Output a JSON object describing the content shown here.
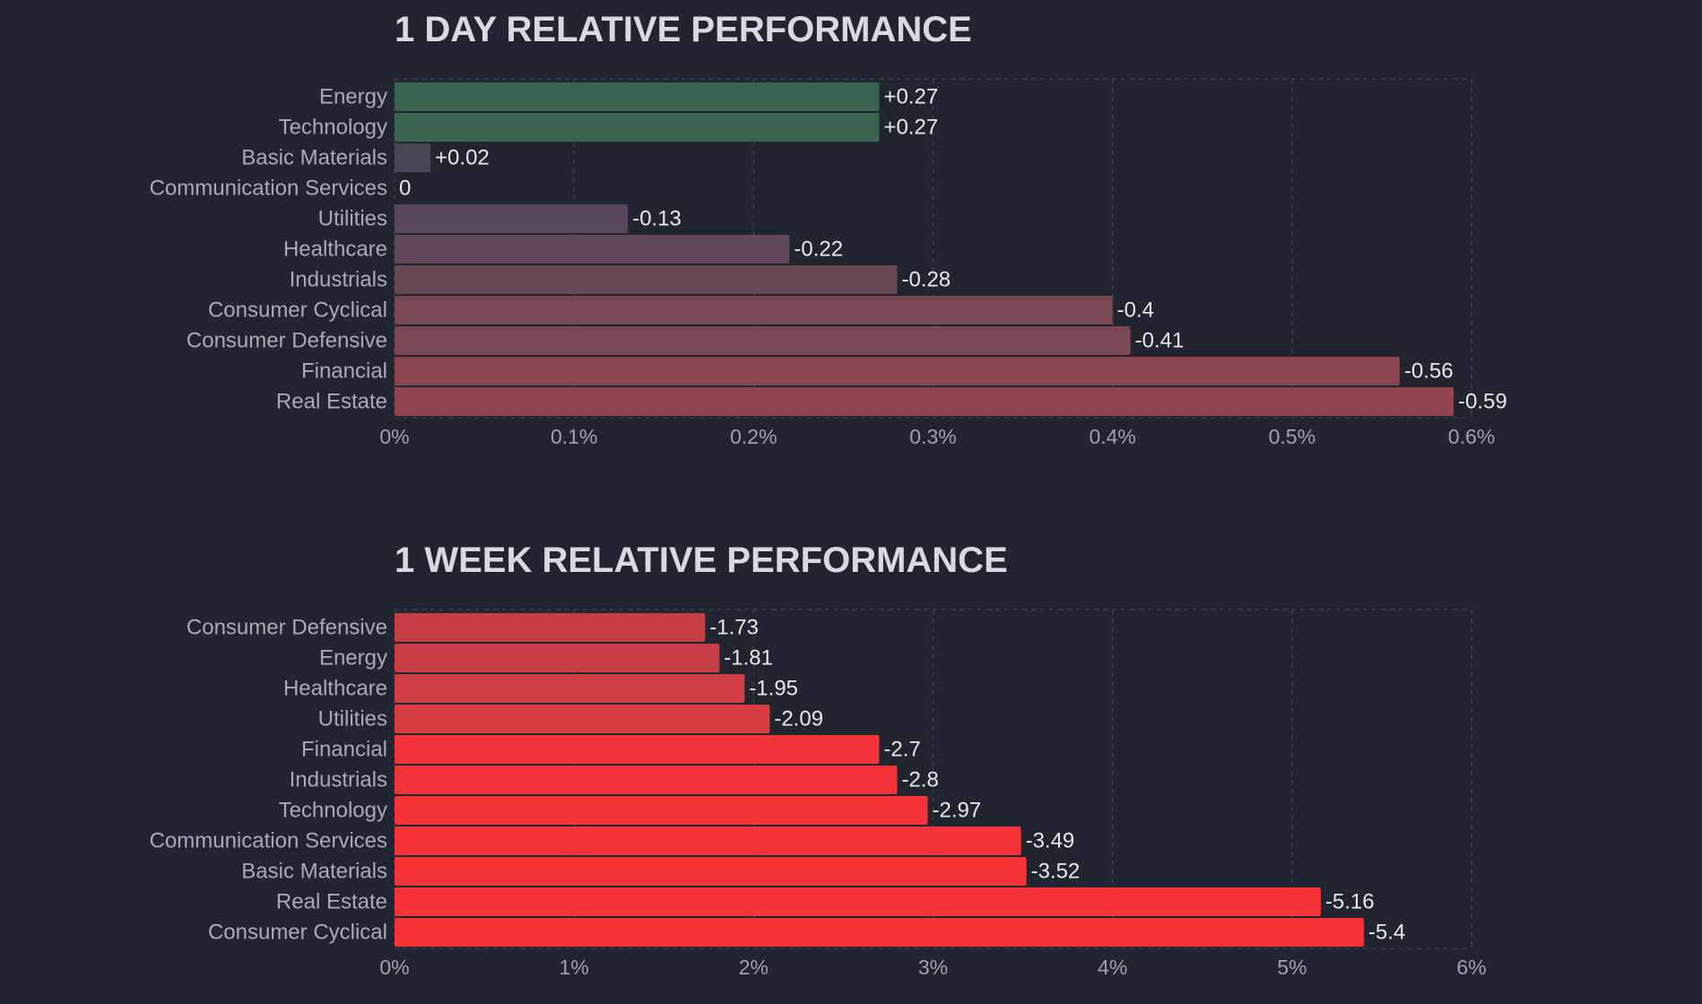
{
  "chart_data": [
    {
      "type": "bar",
      "orientation": "horizontal",
      "title": "1 DAY RELATIVE PERFORMANCE",
      "categories": [
        "Energy",
        "Technology",
        "Basic Materials",
        "Communication Services",
        "Utilities",
        "Healthcare",
        "Industrials",
        "Consumer Cyclical",
        "Consumer Defensive",
        "Financial",
        "Real Estate"
      ],
      "values": [
        0.27,
        0.27,
        0.02,
        0,
        -0.13,
        -0.22,
        -0.28,
        -0.4,
        -0.41,
        -0.56,
        -0.59
      ],
      "value_labels": [
        "+0.27",
        "+0.27",
        "+0.02",
        "0",
        "-0.13",
        "-0.22",
        "-0.28",
        "-0.4",
        "-0.41",
        "-0.56",
        "-0.59"
      ],
      "bar_colors": [
        "#3a6350",
        "#3a6350",
        "#454957",
        "#454957",
        "#58465a",
        "#614858",
        "#694856",
        "#774852",
        "#7a4852",
        "#8a454f",
        "#91454e"
      ],
      "xlim": [
        0,
        0.6
      ],
      "ticks": [
        0,
        0.1,
        0.2,
        0.3,
        0.4,
        0.5,
        0.6
      ],
      "tick_labels": [
        "0%",
        "0.1%",
        "0.2%",
        "0.3%",
        "0.4%",
        "0.5%",
        "0.6%"
      ],
      "grid": true,
      "xlabel": "",
      "ylabel": ""
    },
    {
      "type": "bar",
      "orientation": "horizontal",
      "title": "1 WEEK RELATIVE PERFORMANCE",
      "categories": [
        "Consumer Defensive",
        "Energy",
        "Healthcare",
        "Utilities",
        "Financial",
        "Industrials",
        "Technology",
        "Communication Services",
        "Basic Materials",
        "Real Estate",
        "Consumer Cyclical"
      ],
      "values": [
        -1.73,
        -1.81,
        -1.95,
        -2.09,
        -2.7,
        -2.8,
        -2.97,
        -3.49,
        -3.52,
        -5.16,
        -5.4
      ],
      "value_labels": [
        "-1.73",
        "-1.81",
        "-1.95",
        "-2.09",
        "-2.7",
        "-2.8",
        "-2.97",
        "-3.49",
        "-3.52",
        "-5.16",
        "-5.4"
      ],
      "bar_colors": [
        "#c53f44",
        "#c73f44",
        "#cf3f44",
        "#d53e43",
        "#f3343a",
        "#f3343a",
        "#f5353a",
        "#f5353a",
        "#f5353a",
        "#f5353a",
        "#f5353a"
      ],
      "xlim": [
        0,
        6
      ],
      "ticks": [
        0,
        1,
        2,
        3,
        4,
        5,
        6
      ],
      "tick_labels": [
        "0%",
        "1%",
        "2%",
        "3%",
        "4%",
        "5%",
        "6%"
      ],
      "grid": true,
      "xlabel": "",
      "ylabel": ""
    }
  ],
  "colors": {
    "background": "#21252f",
    "title": "#d8dae3",
    "category_label": "#a8acba",
    "value_label": "#e8e9ee",
    "tick_label": "#9ea2b2",
    "grid": "#3b404c"
  }
}
